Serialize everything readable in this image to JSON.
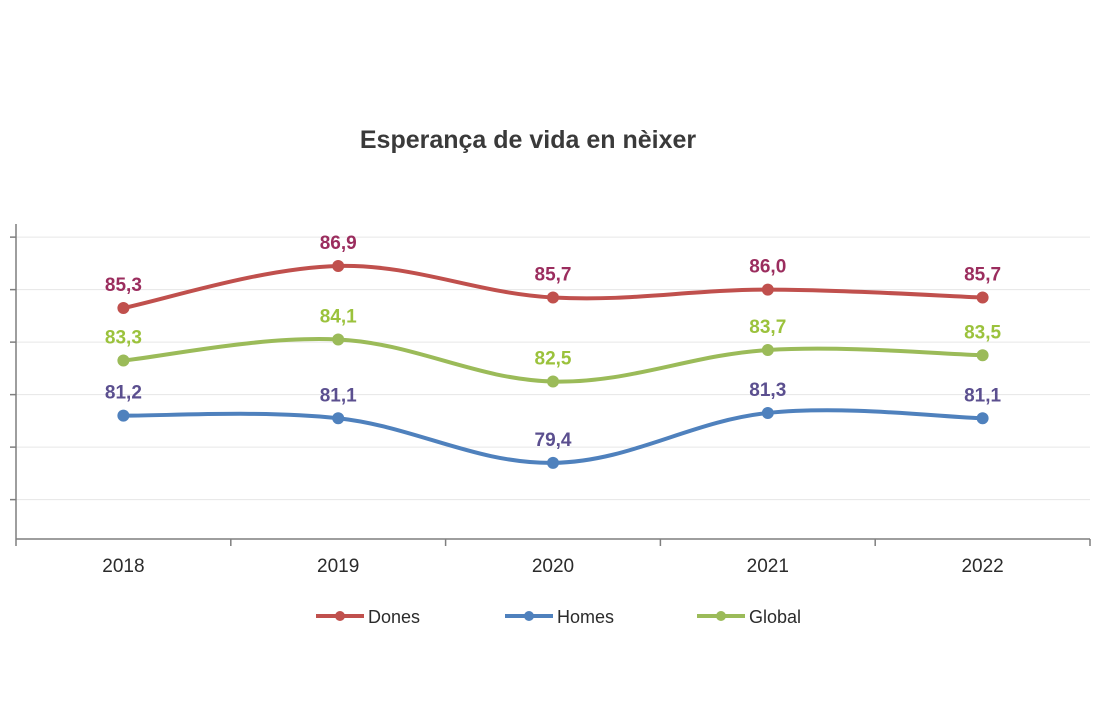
{
  "chart_data": {
    "type": "line",
    "title": "Esperança de vida en nèixer",
    "categories": [
      "2018",
      "2019",
      "2020",
      "2021",
      "2022"
    ],
    "ylim": [
      76.5,
      88.5
    ],
    "grid": true,
    "legend": "bottom",
    "series": [
      {
        "name": "Dones",
        "color": "#c0504d",
        "label_color": "#9b2d5e",
        "values": [
          85.3,
          86.9,
          85.7,
          86.0,
          85.7
        ],
        "labels": [
          "85,3",
          "86,9",
          "85,7",
          "86,0",
          "85,7"
        ]
      },
      {
        "name": "Homes",
        "color": "#4f81bd",
        "label_color": "#5b4f8f",
        "values": [
          81.2,
          81.1,
          79.4,
          81.3,
          81.1
        ],
        "labels": [
          "81,2",
          "81,1",
          "79,4",
          "81,3",
          "81,1"
        ]
      },
      {
        "name": "Global",
        "color": "#9bbb59",
        "label_color": "#9bc23c",
        "values": [
          83.3,
          84.1,
          82.5,
          83.7,
          83.5
        ],
        "labels": [
          "83,3",
          "84,1",
          "82,5",
          "83,7",
          "83,5"
        ]
      }
    ]
  }
}
